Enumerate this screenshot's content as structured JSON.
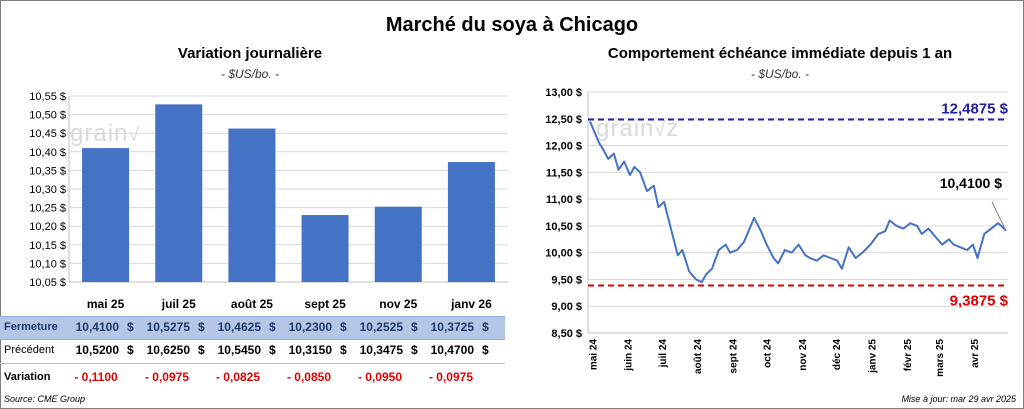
{
  "header": {
    "title": "Marché du soya à Chicago"
  },
  "watermark": "grain",
  "chart_data": [
    {
      "type": "bar",
      "title": "Variation journalière",
      "unit_label": "- $US/bo. -",
      "categories": [
        "mai 25",
        "juil 25",
        "août 25",
        "sept 25",
        "nov 25",
        "janv 26"
      ],
      "values": [
        10.41,
        10.5275,
        10.4625,
        10.23,
        10.2525,
        10.3725
      ],
      "ylim": [
        10.05,
        10.55
      ],
      "yticks": [
        "10,05 $",
        "10,10 $",
        "10,15 $",
        "10,20 $",
        "10,25 $",
        "10,30 $",
        "10,35 $",
        "10,40 $",
        "10,45 $",
        "10,50 $",
        "10,55 $"
      ],
      "bar_color": "#4472c4",
      "grid": true
    },
    {
      "type": "line",
      "title": "Comportement  échéance immédiate depuis 1 an",
      "unit_label": "- $US/bo. -",
      "ylim": [
        8.5,
        13.0
      ],
      "yticks": [
        "8,50 $",
        "9,00 $",
        "9,50 $",
        "10,00 $",
        "10,50 $",
        "11,00 $",
        "11,50 $",
        "12,00 $",
        "12,50 $",
        "13,00 $"
      ],
      "xticks": [
        "mai 24",
        "juin 24",
        "juil 24",
        "août 24",
        "sept 24",
        "oct 24",
        "nov 24",
        "déc 24",
        "janv 25",
        "févr 25",
        "mars 25",
        "avr 25"
      ],
      "x": [
        "2024-04-29",
        "2024-05-02",
        "2024-05-07",
        "2024-05-10",
        "2024-05-15",
        "2024-05-20",
        "2024-05-24",
        "2024-05-29",
        "2024-06-03",
        "2024-06-07",
        "2024-06-12",
        "2024-06-18",
        "2024-06-24",
        "2024-06-28",
        "2024-07-03",
        "2024-07-09",
        "2024-07-15",
        "2024-07-19",
        "2024-07-25",
        "2024-07-31",
        "2024-08-05",
        "2024-08-09",
        "2024-08-14",
        "2024-08-20",
        "2024-08-26",
        "2024-08-30",
        "2024-09-05",
        "2024-09-11",
        "2024-09-16",
        "2024-09-20",
        "2024-09-26",
        "2024-10-01",
        "2024-10-07",
        "2024-10-11",
        "2024-10-17",
        "2024-10-23",
        "2024-10-29",
        "2024-11-04",
        "2024-11-08",
        "2024-11-14",
        "2024-11-20",
        "2024-11-26",
        "2024-12-02",
        "2024-12-06",
        "2024-12-12",
        "2024-12-18",
        "2024-12-24",
        "2024-12-31",
        "2025-01-07",
        "2025-01-13",
        "2025-01-17",
        "2025-01-23",
        "2025-01-29",
        "2025-02-04",
        "2025-02-10",
        "2025-02-14",
        "2025-02-20",
        "2025-02-26",
        "2025-03-04",
        "2025-03-10",
        "2025-03-14",
        "2025-03-20",
        "2025-03-26",
        "2025-03-31",
        "2025-04-04",
        "2025-04-10",
        "2025-04-16",
        "2025-04-22",
        "2025-04-25",
        "2025-04-29"
      ],
      "values": [
        12.45,
        12.3,
        12.05,
        11.95,
        11.75,
        11.85,
        11.55,
        11.7,
        11.45,
        11.6,
        11.5,
        11.15,
        11.25,
        10.85,
        10.95,
        10.45,
        9.95,
        10.05,
        9.65,
        9.5,
        9.45,
        9.6,
        9.7,
        10.05,
        10.15,
        10.0,
        10.05,
        10.2,
        10.45,
        10.65,
        10.4,
        10.15,
        9.9,
        9.8,
        10.05,
        10.0,
        10.15,
        9.95,
        9.9,
        9.85,
        9.95,
        9.9,
        9.85,
        9.7,
        10.1,
        9.9,
        10.0,
        10.15,
        10.35,
        10.4,
        10.6,
        10.5,
        10.45,
        10.55,
        10.5,
        10.35,
        10.45,
        10.3,
        10.15,
        10.25,
        10.15,
        10.1,
        10.05,
        10.15,
        9.9,
        10.35,
        10.45,
        10.55,
        10.5,
        10.41
      ],
      "high": 12.4875,
      "high_label": "12,4875 $",
      "low": 9.3875,
      "low_label": "9,3875 $",
      "last_label": "10,4100 $",
      "line_color": "#4472c4",
      "high_color": "#1f1fa8",
      "low_color": "#e00000",
      "grid": true
    }
  ],
  "table": {
    "rows": [
      {
        "label": "Fermeture",
        "cells": [
          "10,4100",
          "10,5275",
          "10,4625",
          "10,2300",
          "10,2525",
          "10,3725"
        ],
        "currency": "$"
      },
      {
        "label": "Précédent",
        "cells": [
          "10,5200",
          "10,6250",
          "10,5450",
          "10,3150",
          "10,3475",
          "10,4700"
        ],
        "currency": "$"
      },
      {
        "label": "Variation",
        "cells": [
          "- 0,1100",
          "- 0,0975",
          "- 0,0825",
          "- 0,0850",
          "- 0,0950",
          "- 0,0975"
        ]
      }
    ]
  },
  "footer": {
    "source": "Source: CME Group",
    "updated": "Mise à jour: mar 29 avr 2025"
  }
}
